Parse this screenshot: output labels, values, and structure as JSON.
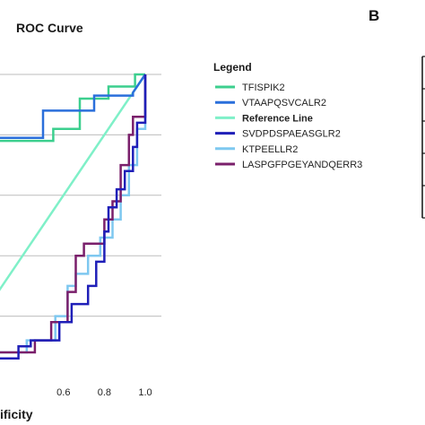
{
  "panel_b": {
    "letter": "B",
    "table_rows": 5
  },
  "chart_data": {
    "type": "line",
    "title": "ROC Curve",
    "xlabel": "ificity",
    "ylabel": "",
    "xlim": [
      0.0,
      1.0
    ],
    "ylim": [
      0.0,
      1.0
    ],
    "x_ticks": [
      "0.6",
      "0.8",
      "1.0"
    ],
    "x_tick_values": [
      0.6,
      0.8,
      1.0
    ],
    "y_grid_values": [
      0.2,
      0.4,
      0.6,
      0.8,
      1.0
    ],
    "grid": true,
    "legend": {
      "title": "Legend",
      "placement": "right"
    },
    "series": [
      {
        "name": "TFISPIK2",
        "color": "#3ccf8e",
        "width": 2.5,
        "x": [
          0.0,
          0.55,
          0.55,
          0.68,
          0.68,
          0.82,
          0.82,
          0.95,
          0.95,
          1.0
        ],
        "y": [
          0.78,
          0.78,
          0.82,
          0.82,
          0.92,
          0.92,
          0.96,
          0.96,
          1.0,
          1.0
        ]
      },
      {
        "name": "VTAAPQSVCALR2",
        "color": "#2a6fdb",
        "width": 2.5,
        "x": [
          0.0,
          0.5,
          0.5,
          0.75,
          0.75,
          0.94,
          0.94,
          1.0
        ],
        "y": [
          0.79,
          0.79,
          0.88,
          0.88,
          0.93,
          0.93,
          0.94,
          1.0
        ]
      },
      {
        "name": "Reference Line",
        "color": "#7ff0c8",
        "width": 2.5,
        "x": [
          0.0,
          1.0
        ],
        "y": [
          0.0,
          1.0
        ]
      },
      {
        "name": "SVDPDSPAEASGLR2",
        "color": "#1f1fb8",
        "width": 2.5,
        "x": [
          0.0,
          0.2,
          0.2,
          0.38,
          0.38,
          0.44,
          0.44,
          0.58,
          0.58,
          0.64,
          0.64,
          0.72,
          0.72,
          0.76,
          0.76,
          0.8,
          0.8,
          0.82,
          0.82,
          0.86,
          0.86,
          0.9,
          0.9,
          0.94,
          0.94,
          0.96,
          0.96,
          1.0,
          1.0
        ],
        "y": [
          0.02,
          0.02,
          0.06,
          0.06,
          0.1,
          0.1,
          0.12,
          0.12,
          0.18,
          0.18,
          0.24,
          0.24,
          0.3,
          0.3,
          0.38,
          0.38,
          0.48,
          0.48,
          0.56,
          0.56,
          0.62,
          0.62,
          0.68,
          0.68,
          0.76,
          0.76,
          0.84,
          0.84,
          1.0
        ]
      },
      {
        "name": "KTPEELLR2",
        "color": "#7ec8f0",
        "width": 2.5,
        "x": [
          0.0,
          0.22,
          0.22,
          0.42,
          0.42,
          0.56,
          0.56,
          0.62,
          0.62,
          0.66,
          0.66,
          0.72,
          0.72,
          0.78,
          0.78,
          0.84,
          0.84,
          0.88,
          0.88,
          0.92,
          0.92,
          0.96,
          0.96,
          1.0,
          1.0
        ],
        "y": [
          0.02,
          0.02,
          0.08,
          0.08,
          0.12,
          0.12,
          0.2,
          0.2,
          0.3,
          0.3,
          0.34,
          0.34,
          0.4,
          0.4,
          0.46,
          0.46,
          0.52,
          0.52,
          0.6,
          0.6,
          0.7,
          0.7,
          0.82,
          0.82,
          1.0
        ]
      },
      {
        "name": "LASPGFPGEYANDQERR3",
        "color": "#7a1f6b",
        "width": 2.5,
        "x": [
          0.0,
          0.08,
          0.08,
          0.26,
          0.26,
          0.46,
          0.46,
          0.54,
          0.54,
          0.62,
          0.62,
          0.66,
          0.66,
          0.7,
          0.7,
          0.8,
          0.8,
          0.84,
          0.84,
          0.88,
          0.88,
          0.92,
          0.92,
          0.94,
          0.94,
          1.0,
          1.0
        ],
        "y": [
          0.0,
          0.0,
          0.04,
          0.04,
          0.08,
          0.08,
          0.12,
          0.12,
          0.18,
          0.18,
          0.28,
          0.28,
          0.4,
          0.4,
          0.44,
          0.44,
          0.52,
          0.52,
          0.58,
          0.58,
          0.7,
          0.7,
          0.8,
          0.8,
          0.86,
          0.86,
          1.0
        ]
      }
    ]
  }
}
